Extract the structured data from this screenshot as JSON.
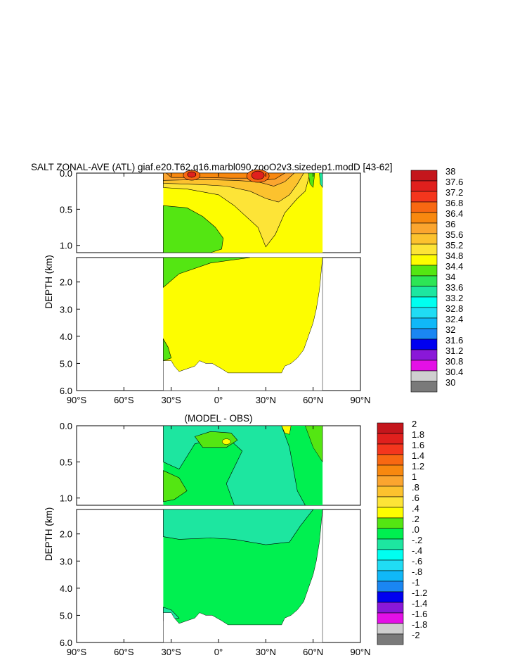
{
  "figure": {
    "title": "SALT ZONAL-AVE (ATL) giaf.e20.T62.g16.marbl090.zooO2v3.sizedep1.modD [43-62]",
    "diff_title": "(MODEL - OBS)"
  },
  "chart_data": [
    {
      "type": "heatmap",
      "title": "SALT ZONAL-AVE (ATL) giaf.e20.T62.g16.marbl090.zooO2v3.sizedep1.modD [43-62]",
      "xlabel": "",
      "ylabel": "DEPTH (km)",
      "x_ticks": [
        "90°S",
        "60°S",
        "30°S",
        "0°",
        "30°N",
        "60°N",
        "90°N"
      ],
      "y_ticks_upper": [
        "0.0",
        "0.5",
        "1.0"
      ],
      "y_ticks_lower": [
        "2.0",
        "3.0",
        "4.0",
        "5.0",
        "6.0"
      ],
      "xlim": [
        -90,
        90
      ],
      "ylim_km": [
        6.0,
        0.0
      ],
      "colorbar": {
        "labels": [
          "38",
          "37.6",
          "37.2",
          "36.8",
          "36.4",
          "36",
          "35.6",
          "35.2",
          "34.8",
          "34.4",
          "34",
          "33.6",
          "33.2",
          "32.8",
          "32.4",
          "32",
          "31.6",
          "31.2",
          "30.8",
          "30.4",
          "30"
        ],
        "colors": [
          "#c4161c",
          "#e0201d",
          "#f4361d",
          "#f86812",
          "#f8880f",
          "#fba52f",
          "#fcc22e",
          "#fde437",
          "#fdfd00",
          "#54e612",
          "#2de555",
          "#1de6a0",
          "#00fff0",
          "#20dcf4",
          "#10b8f8",
          "#1a86f2",
          "#0000f0",
          "#8a18d8",
          "#e410e6",
          "#cfcfcf",
          "#7a7a7a"
        ],
        "order": "bottom-to-top"
      },
      "summary": {
        "surface_max": 37.2,
        "surface_max_lat": [
          -15,
          25
        ],
        "deep_value": 34.9,
        "southern_intermediate_value": 34.6
      }
    },
    {
      "type": "heatmap",
      "title": "(MODEL - OBS)",
      "xlabel": "",
      "ylabel": "DEPTH (km)",
      "x_ticks": [
        "90°S",
        "60°S",
        "30°S",
        "0°",
        "30°N",
        "60°N",
        "90°N"
      ],
      "y_ticks_upper": [
        "0.0",
        "0.5",
        "1.0"
      ],
      "y_ticks_lower": [
        "2.0",
        "3.0",
        "4.0",
        "5.0",
        "6.0"
      ],
      "xlim": [
        -90,
        90
      ],
      "ylim_km": [
        6.0,
        0.0
      ],
      "colorbar": {
        "labels": [
          "2",
          "1.8",
          "1.6",
          "1.4",
          "1.2",
          "1",
          ".8",
          ".6",
          ".4",
          ".2",
          ".0",
          "-.2",
          "-.4",
          "-.6",
          "-.8",
          "-1",
          "-1.2",
          "-1.4",
          "-1.6",
          "-1.8",
          "-2"
        ],
        "colors": [
          "#c4161c",
          "#e0201d",
          "#f4361d",
          "#f86812",
          "#f8880f",
          "#fba52f",
          "#fcc22e",
          "#fde437",
          "#fdfd00",
          "#54e612",
          "#00f050",
          "#1de6a0",
          "#00fff0",
          "#20dcf4",
          "#10b8f8",
          "#1a86f2",
          "#0000f0",
          "#8a18d8",
          "#e410e6",
          "#cfcfcf",
          "#7a7a7a"
        ],
        "order": "bottom-to-top"
      },
      "summary": {
        "deep_bias": 0.1,
        "intermediate_bias": -0.1,
        "surface_bias_max": 0.5
      }
    }
  ]
}
